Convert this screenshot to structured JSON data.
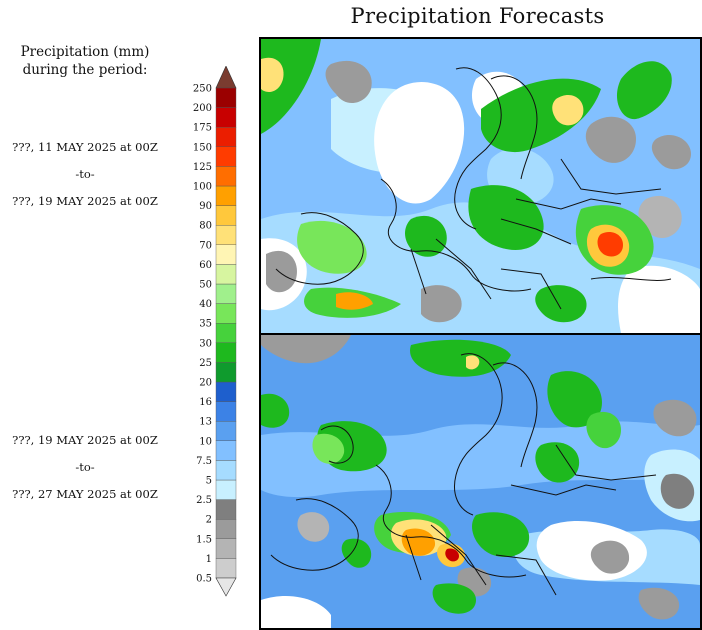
{
  "title": "Precipitation Forecasts",
  "legend": {
    "title_line1": "Precipitation (mm)",
    "title_line2": "during the period:",
    "levels": [
      "0.5",
      "1",
      "1.5",
      "2",
      "2.5",
      "5",
      "7.5",
      "10",
      "13",
      "16",
      "20",
      "25",
      "30",
      "35",
      "40",
      "50",
      "60",
      "70",
      "80",
      "90",
      "100",
      "125",
      "150",
      "175",
      "200",
      "250"
    ],
    "colors": [
      "#e6e6e6",
      "#cdcdcd",
      "#b4b4b4",
      "#9b9b9b",
      "#7f7f7f",
      "#c8f0ff",
      "#a6dcff",
      "#82c0ff",
      "#5aa0f0",
      "#3c82e6",
      "#1e5fcd",
      "#0f9b2d",
      "#1eb91e",
      "#46d23c",
      "#78e65a",
      "#a0f08c",
      "#d7f5a0",
      "#fff5b4",
      "#ffe178",
      "#ffc83c",
      "#ffa000",
      "#ff6e00",
      "#ff3c00",
      "#eb1e00",
      "#c80000",
      "#9b0000",
      "#7a3c30"
    ]
  },
  "periods": [
    {
      "start": "???, 11 MAY 2025 at 00Z",
      "sep": "-to-",
      "end": "???, 19 MAY 2025 at 00Z"
    },
    {
      "start": "???, 19 MAY 2025 at 00Z",
      "sep": "-to-",
      "end": "???, 27 MAY 2025 at 00Z"
    }
  ]
}
